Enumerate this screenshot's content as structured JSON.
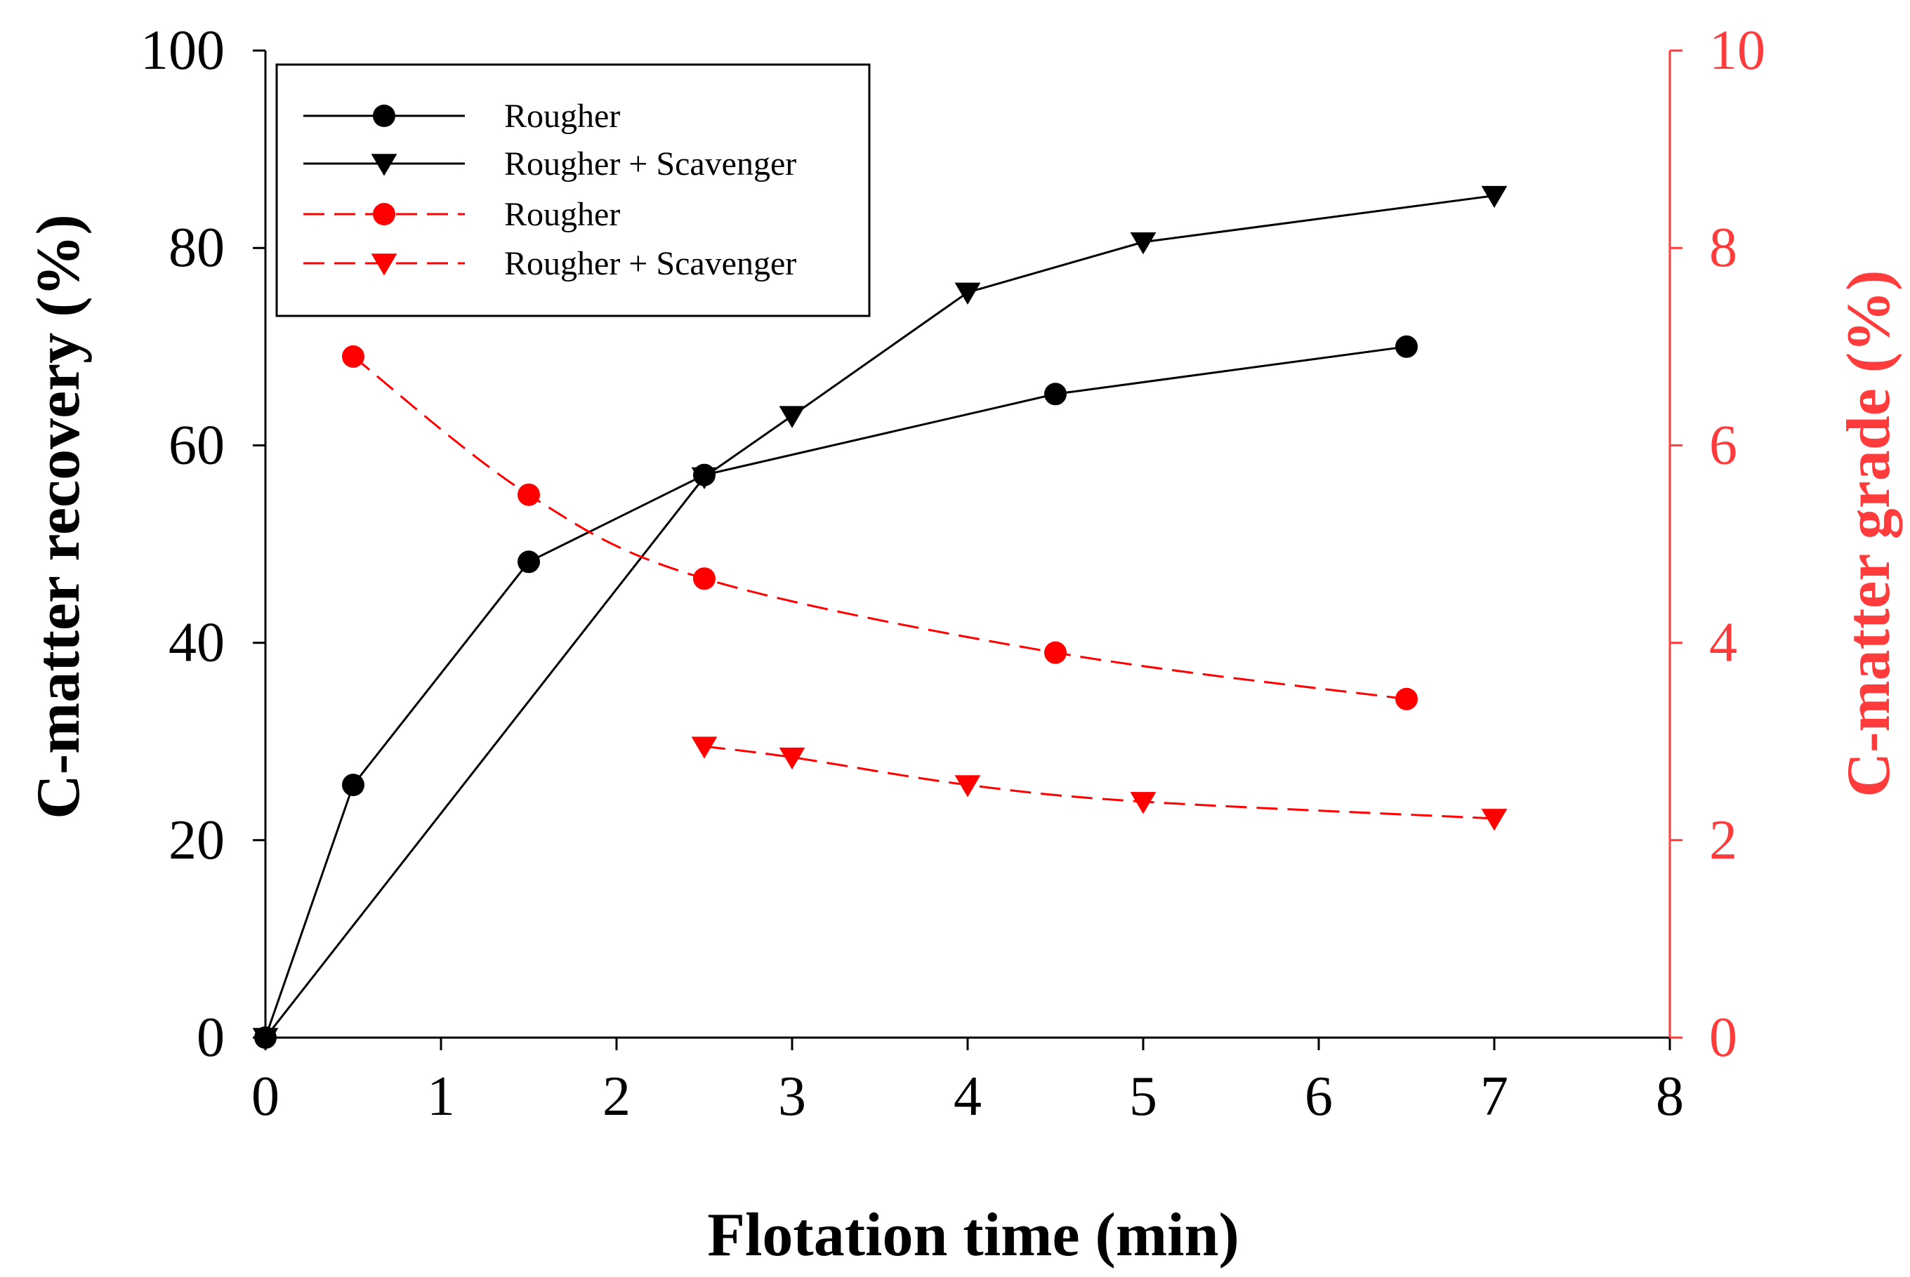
{
  "chart_data": {
    "type": "line",
    "title": "",
    "xlabel": "Flotation time (min)",
    "ylabel_left": "C-matter recovery (%)",
    "ylabel_right": "C-matter grade (%)",
    "xlim": [
      0,
      8
    ],
    "ylim_left": [
      0,
      100
    ],
    "ylim_right": [
      0,
      10
    ],
    "xticks": [
      "0",
      "1",
      "2",
      "3",
      "4",
      "5",
      "6",
      "7",
      "8"
    ],
    "yticks_left": [
      "0",
      "20",
      "40",
      "60",
      "80",
      "100"
    ],
    "yticks_right": [
      "0",
      "2",
      "4",
      "6",
      "8",
      "10"
    ],
    "grid": false,
    "legend_position": "top-left",
    "colors": {
      "left_axis": "#000000",
      "right_axis": "#ff3b3b",
      "red_series": "#ff0000"
    },
    "series": [
      {
        "name": "Rougher",
        "axis": "left",
        "marker": "circle",
        "line": "solid",
        "color": "#000000",
        "x": [
          0,
          0.5,
          1.5,
          2.5,
          4.5,
          6.5
        ],
        "y": [
          0,
          25.6,
          48.2,
          57.0,
          65.2,
          70.0
        ]
      },
      {
        "name": "Rougher + Scavenger",
        "axis": "left",
        "marker": "triangle-down",
        "line": "solid",
        "color": "#000000",
        "x": [
          0,
          2.5,
          3,
          4,
          5,
          7
        ],
        "y": [
          0,
          56.8,
          63.0,
          75.5,
          80.6,
          85.3
        ]
      },
      {
        "name": "Rougher",
        "axis": "right",
        "marker": "circle",
        "line": "dashed",
        "color": "#ff0000",
        "x": [
          0.5,
          1.5,
          2.5,
          4.5,
          6.5
        ],
        "y": [
          6.9,
          5.5,
          4.65,
          3.9,
          3.43
        ]
      },
      {
        "name": "Rougher + Scavenger",
        "axis": "right",
        "marker": "triangle-down",
        "line": "dashed",
        "color": "#ff0000",
        "x": [
          2.5,
          3,
          4,
          5,
          7
        ],
        "y": [
          2.95,
          2.84,
          2.56,
          2.39,
          2.22
        ]
      }
    ]
  }
}
